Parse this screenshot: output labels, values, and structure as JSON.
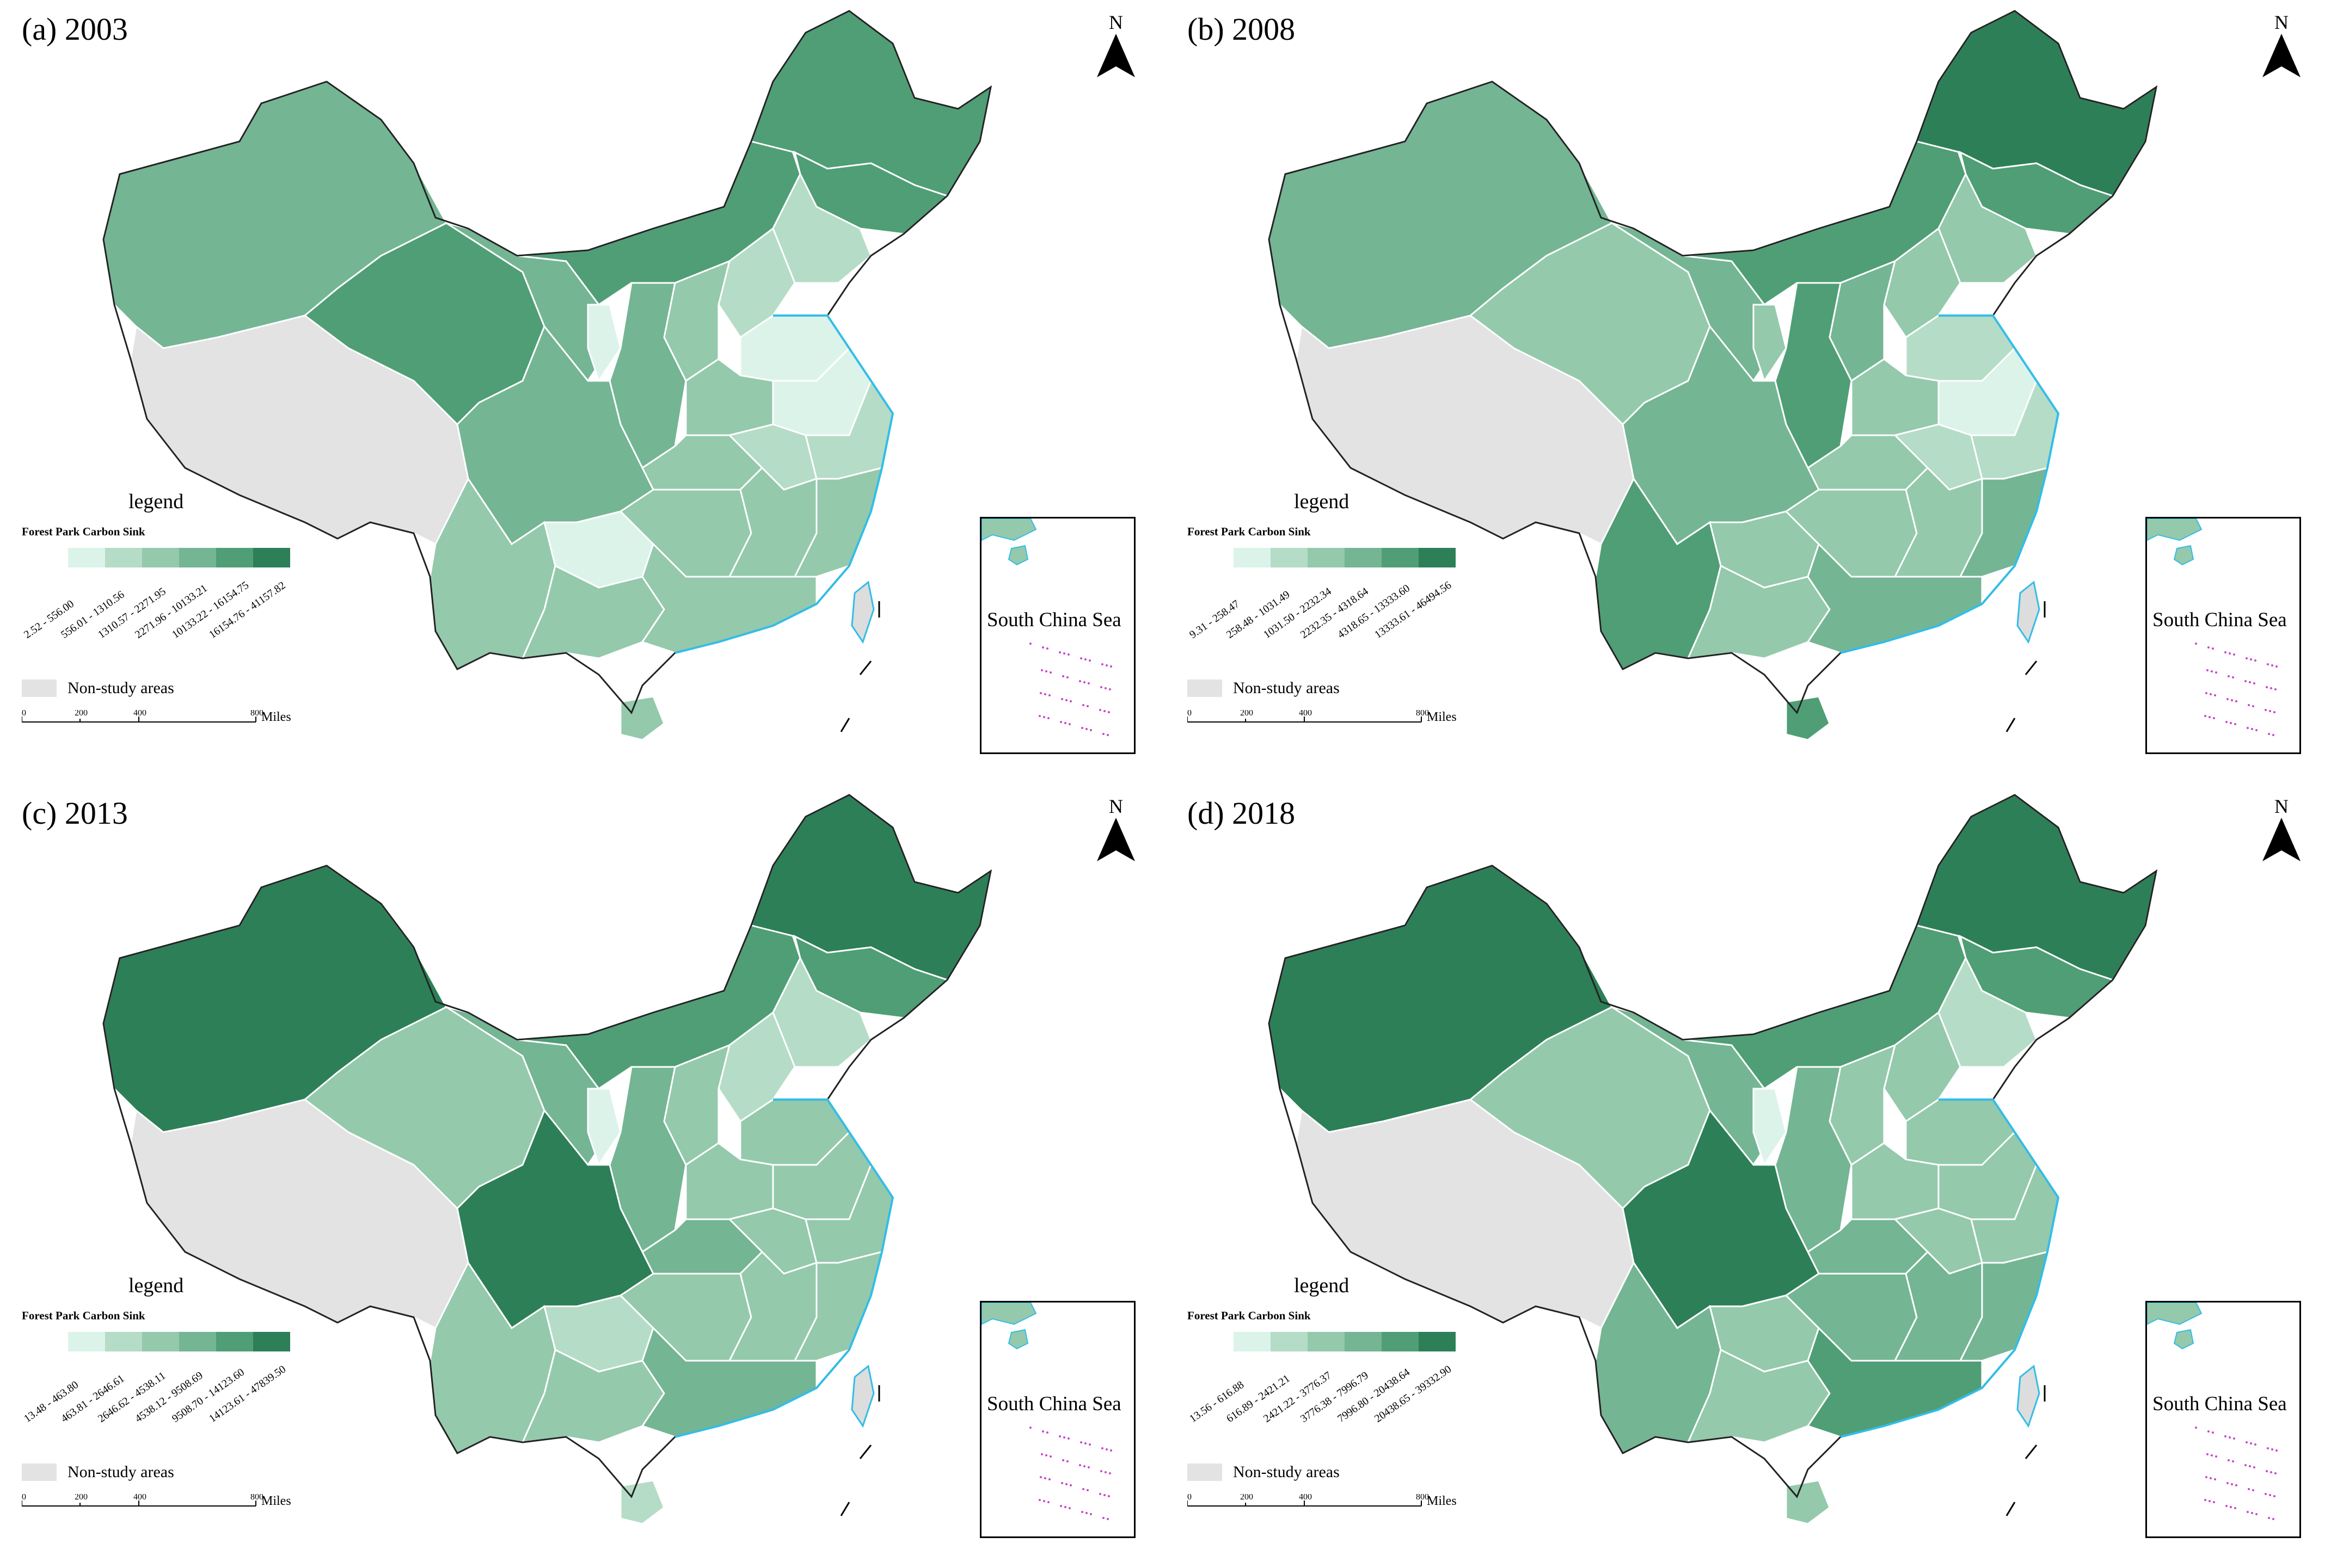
{
  "common": {
    "legend_title": "legend",
    "legend_subtitle": "Forest Park Carbon Sink",
    "nonstudy_label": "Non-study areas",
    "north_label": "N",
    "inset_label": "South China Sea",
    "scale": {
      "ticks": [
        "0",
        "200",
        "400",
        "800"
      ],
      "unit": "Miles"
    },
    "colors": [
      "#dcf3ea",
      "#b5dcc7",
      "#94c9ac",
      "#74b594",
      "#4f9e76",
      "#2d7f58"
    ],
    "nonstudy_color": "#e3e3e3",
    "coast_color": "#33bde8",
    "islands_color": "#cc44cc"
  },
  "panels": [
    {
      "title": "(a) 2003",
      "classes": [
        "2.52 - 556.00",
        "556.01 - 1310.56",
        "1310.57 - 2271.95",
        "2271.96 - 10133.21",
        "10133.22 - 16154.75",
        "16154.76 - 41157.82"
      ]
    },
    {
      "title": "(b) 2008",
      "classes": [
        "9.31 - 258.47",
        "258.48 - 1031.49",
        "1031.50 - 2232.34",
        "2232.35 - 4318.64",
        "4318.65 - 13333.60",
        "13333.61 - 46494.56"
      ]
    },
    {
      "title": "(c) 2013",
      "classes": [
        "13.48 - 463.80",
        "463.81 - 2646.61",
        "2646.62 - 4538.11",
        "4538.12 - 9508.69",
        "9508.70 - 14123.60",
        "14123.61 - 47839.50"
      ]
    },
    {
      "title": "(d) 2018",
      "classes": [
        "13.56 - 616.88",
        "616.89 - 2421.21",
        "2421.22 - 3776.37",
        "3776.38 - 7996.79",
        "7996.80 - 20438.64",
        "20438.65 - 39332.90"
      ]
    }
  ]
}
